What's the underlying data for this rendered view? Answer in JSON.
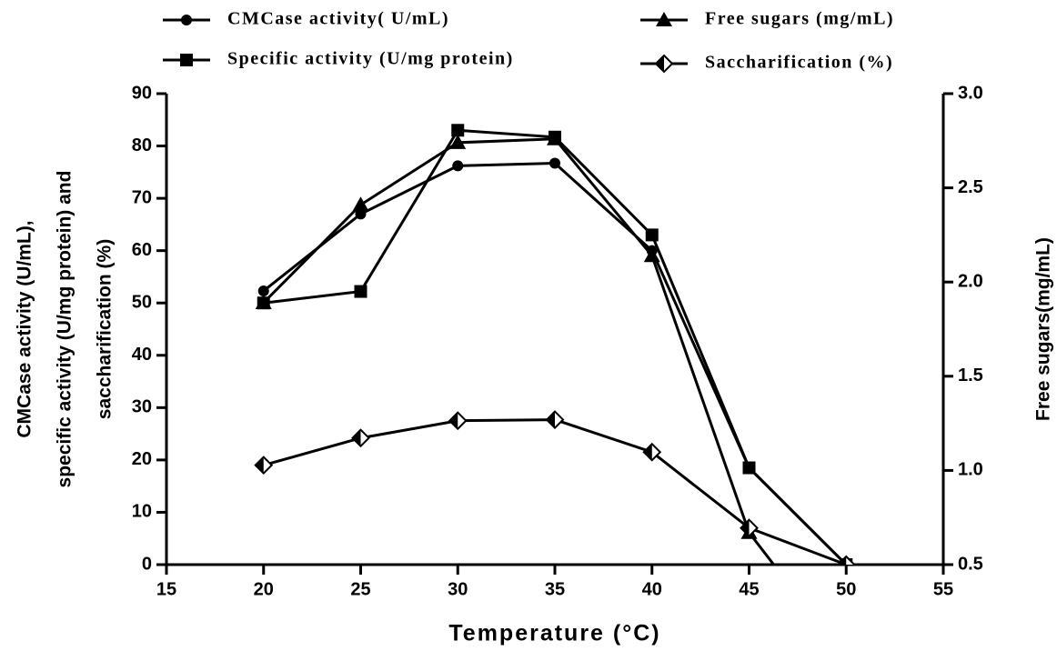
{
  "chart_data": {
    "type": "line",
    "x_label": "Temperature (°C)",
    "y_label": [
      "CMCase activity (U/mL),",
      "specific activity (U/mg protein) and",
      "saccharification (%)"
    ],
    "y2_label": "Free sugars(mg/mL)",
    "x": [
      20,
      25,
      30,
      35,
      40,
      45,
      50
    ],
    "series": [
      {
        "name": "CMCase activity( U/mL)",
        "color": "#000000",
        "marker": "circle",
        "values": [
          52.3,
          67,
          76.2,
          76.7,
          60,
          18.5,
          0
        ]
      },
      {
        "name": "Free sugars (mg/mL)",
        "color": "#000000",
        "marker": "triangle",
        "axis": "y2",
        "values": [
          1.89,
          2.41,
          2.74,
          2.76,
          2.14,
          0.67,
          0
        ]
      },
      {
        "name": "Specific activity (U/mg protein)",
        "color": "#000000",
        "marker": "square",
        "values": [
          50,
          52.2,
          83,
          81.7,
          63,
          18.5,
          0
        ]
      },
      {
        "name": "Saccharification (%)",
        "color": "#000000",
        "marker": "diamond",
        "values": [
          19,
          24.2,
          27.5,
          27.7,
          21.5,
          7,
          0
        ]
      }
    ],
    "xlim": [
      15,
      55
    ],
    "xticks": [
      15,
      20,
      25,
      30,
      35,
      40,
      45,
      50,
      55
    ],
    "ylim": [
      0,
      90
    ],
    "yticks": [
      0,
      10,
      20,
      30,
      40,
      50,
      60,
      70,
      80,
      90
    ],
    "y2lim": [
      0.5,
      3.0
    ],
    "y2ticks": [
      0.5,
      {
        "value": 1,
        "label": "1.0"
      },
      1.5,
      {
        "value": 2,
        "label": "2.0"
      },
      2.5,
      {
        "value": 3,
        "label": "3.0"
      }
    ]
  }
}
